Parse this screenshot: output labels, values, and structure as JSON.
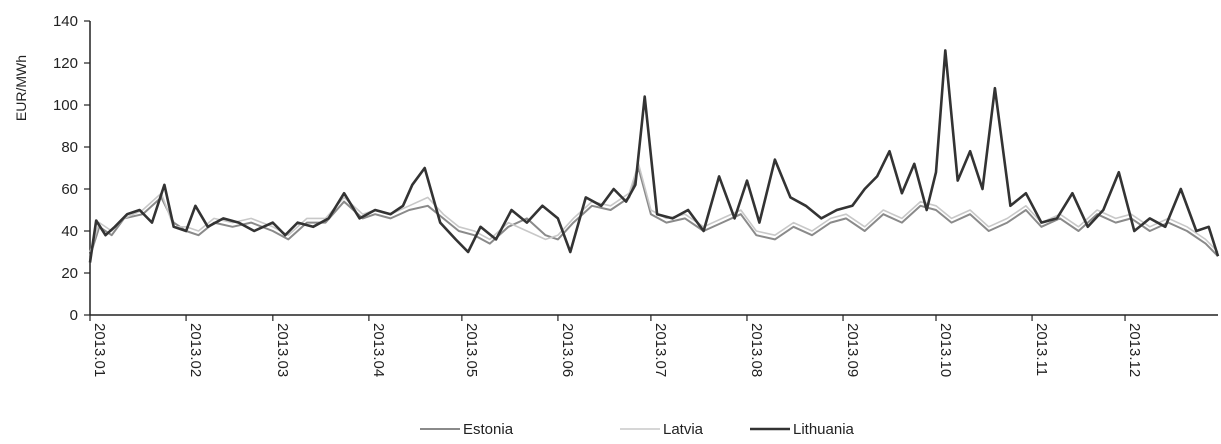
{
  "chart_data": {
    "type": "line",
    "ylabel": "EUR/MWh",
    "ylim": [
      0,
      140
    ],
    "yticks": [
      0,
      20,
      40,
      60,
      80,
      100,
      120,
      140
    ],
    "xlim": [
      "2013-01-01",
      "2013-12-31"
    ],
    "xticks": [
      {
        "date": "2013-01-01",
        "label": "2013.01"
      },
      {
        "date": "2013-02-01",
        "label": "2013.02"
      },
      {
        "date": "2013-03-01",
        "label": "2013.03"
      },
      {
        "date": "2013-04-01",
        "label": "2013.04"
      },
      {
        "date": "2013-05-01",
        "label": "2013.05"
      },
      {
        "date": "2013-06-01",
        "label": "2013.06"
      },
      {
        "date": "2013-07-01",
        "label": "2013.07"
      },
      {
        "date": "2013-08-01",
        "label": "2013.08"
      },
      {
        "date": "2013-09-01",
        "label": "2013.09"
      },
      {
        "date": "2013-10-01",
        "label": "2013.10"
      },
      {
        "date": "2013-11-01",
        "label": "2013.11"
      },
      {
        "date": "2013-12-01",
        "label": "2013.12"
      }
    ],
    "grid": false,
    "legend_position": "bottom",
    "colors": {
      "Estonia": "#8a8a8a",
      "Latvia": "#c8c8c8",
      "Lithuania": "#333333"
    },
    "series": [
      {
        "name": "Estonia",
        "x": [
          "2013-01-01",
          "2013-01-04",
          "2013-01-08",
          "2013-01-12",
          "2013-01-18",
          "2013-01-24",
          "2013-01-28",
          "2013-02-01",
          "2013-02-05",
          "2013-02-10",
          "2013-02-16",
          "2013-02-22",
          "2013-03-01",
          "2013-03-06",
          "2013-03-12",
          "2013-03-18",
          "2013-03-24",
          "2013-03-30",
          "2013-04-03",
          "2013-04-08",
          "2013-04-14",
          "2013-04-20",
          "2013-04-25",
          "2013-04-30",
          "2013-05-05",
          "2013-05-10",
          "2013-05-16",
          "2013-05-22",
          "2013-05-28",
          "2013-06-01",
          "2013-06-06",
          "2013-06-12",
          "2013-06-18",
          "2013-06-24",
          "2013-06-27",
          "2013-07-01",
          "2013-07-06",
          "2013-07-12",
          "2013-07-18",
          "2013-07-24",
          "2013-07-30",
          "2013-08-04",
          "2013-08-10",
          "2013-08-16",
          "2013-08-22",
          "2013-08-28",
          "2013-09-02",
          "2013-09-08",
          "2013-09-14",
          "2013-09-20",
          "2013-09-26",
          "2013-10-01",
          "2013-10-06",
          "2013-10-12",
          "2013-10-18",
          "2013-10-24",
          "2013-10-30",
          "2013-11-04",
          "2013-11-10",
          "2013-11-16",
          "2013-11-22",
          "2013-11-28",
          "2013-12-03",
          "2013-12-09",
          "2013-12-15",
          "2013-12-21",
          "2013-12-27",
          "2013-12-31"
        ],
        "y": [
          28,
          42,
          38,
          46,
          48,
          56,
          44,
          40,
          38,
          44,
          42,
          44,
          40,
          36,
          44,
          44,
          54,
          46,
          48,
          46,
          50,
          52,
          46,
          40,
          38,
          34,
          42,
          46,
          38,
          36,
          44,
          52,
          50,
          56,
          70,
          48,
          44,
          46,
          40,
          44,
          48,
          38,
          36,
          42,
          38,
          44,
          46,
          40,
          48,
          44,
          52,
          50,
          44,
          48,
          40,
          44,
          50,
          42,
          46,
          40,
          48,
          44,
          46,
          40,
          44,
          40,
          34,
          28
        ]
      },
      {
        "name": "Latvia",
        "x": [
          "2013-01-01",
          "2013-01-04",
          "2013-01-08",
          "2013-01-12",
          "2013-01-18",
          "2013-01-24",
          "2013-01-28",
          "2013-02-01",
          "2013-02-05",
          "2013-02-10",
          "2013-02-16",
          "2013-02-22",
          "2013-03-01",
          "2013-03-06",
          "2013-03-12",
          "2013-03-18",
          "2013-03-24",
          "2013-03-30",
          "2013-04-03",
          "2013-04-08",
          "2013-04-14",
          "2013-04-20",
          "2013-04-25",
          "2013-04-30",
          "2013-05-05",
          "2013-05-10",
          "2013-05-16",
          "2013-05-22",
          "2013-05-28",
          "2013-06-01",
          "2013-06-06",
          "2013-06-12",
          "2013-06-18",
          "2013-06-24",
          "2013-06-27",
          "2013-07-01",
          "2013-07-06",
          "2013-07-12",
          "2013-07-18",
          "2013-07-24",
          "2013-07-30",
          "2013-08-04",
          "2013-08-10",
          "2013-08-16",
          "2013-08-22",
          "2013-08-28",
          "2013-09-02",
          "2013-09-08",
          "2013-09-14",
          "2013-09-20",
          "2013-09-26",
          "2013-10-01",
          "2013-10-06",
          "2013-10-12",
          "2013-10-18",
          "2013-10-24",
          "2013-10-30",
          "2013-11-04",
          "2013-11-10",
          "2013-11-16",
          "2013-11-22",
          "2013-11-28",
          "2013-12-03",
          "2013-12-09",
          "2013-12-15",
          "2013-12-21",
          "2013-12-27",
          "2013-12-31"
        ],
        "y": [
          30,
          44,
          40,
          46,
          50,
          58,
          42,
          42,
          40,
          46,
          44,
          46,
          42,
          38,
          46,
          46,
          56,
          48,
          50,
          48,
          52,
          56,
          48,
          42,
          40,
          36,
          44,
          40,
          36,
          38,
          46,
          54,
          52,
          58,
          72,
          50,
          46,
          48,
          42,
          46,
          50,
          40,
          38,
          44,
          40,
          46,
          48,
          42,
          50,
          46,
          54,
          52,
          46,
          50,
          42,
          46,
          52,
          44,
          48,
          42,
          50,
          46,
          48,
          42,
          46,
          42,
          36,
          30
        ]
      },
      {
        "name": "Lithuania",
        "x": [
          "2013-01-01",
          "2013-01-03",
          "2013-01-06",
          "2013-01-09",
          "2013-01-13",
          "2013-01-17",
          "2013-01-21",
          "2013-01-25",
          "2013-01-28",
          "2013-02-01",
          "2013-02-04",
          "2013-02-08",
          "2013-02-13",
          "2013-02-18",
          "2013-02-23",
          "2013-03-01",
          "2013-03-05",
          "2013-03-09",
          "2013-03-14",
          "2013-03-19",
          "2013-03-24",
          "2013-03-29",
          "2013-04-03",
          "2013-04-08",
          "2013-04-12",
          "2013-04-15",
          "2013-04-19",
          "2013-04-24",
          "2013-04-29",
          "2013-05-03",
          "2013-05-07",
          "2013-05-12",
          "2013-05-17",
          "2013-05-22",
          "2013-05-27",
          "2013-06-01",
          "2013-06-05",
          "2013-06-10",
          "2013-06-15",
          "2013-06-19",
          "2013-06-23",
          "2013-06-26",
          "2013-06-29",
          "2013-07-03",
          "2013-07-08",
          "2013-07-13",
          "2013-07-18",
          "2013-07-23",
          "2013-07-28",
          "2013-08-01",
          "2013-08-05",
          "2013-08-10",
          "2013-08-15",
          "2013-08-20",
          "2013-08-25",
          "2013-08-30",
          "2013-09-04",
          "2013-09-08",
          "2013-09-12",
          "2013-09-16",
          "2013-09-20",
          "2013-09-24",
          "2013-09-28",
          "2013-10-01",
          "2013-10-04",
          "2013-10-08",
          "2013-10-12",
          "2013-10-16",
          "2013-10-20",
          "2013-10-25",
          "2013-10-30",
          "2013-11-04",
          "2013-11-09",
          "2013-11-14",
          "2013-11-19",
          "2013-11-24",
          "2013-11-29",
          "2013-12-04",
          "2013-12-09",
          "2013-12-14",
          "2013-12-19",
          "2013-12-24",
          "2013-12-28",
          "2013-12-31"
        ],
        "y": [
          25,
          45,
          38,
          42,
          48,
          50,
          44,
          62,
          42,
          40,
          52,
          42,
          46,
          44,
          40,
          44,
          38,
          44,
          42,
          46,
          58,
          46,
          50,
          48,
          52,
          62,
          70,
          44,
          36,
          30,
          42,
          36,
          50,
          44,
          52,
          46,
          30,
          56,
          52,
          60,
          54,
          62,
          104,
          48,
          46,
          50,
          40,
          66,
          46,
          64,
          44,
          74,
          56,
          52,
          46,
          50,
          52,
          60,
          66,
          78,
          58,
          72,
          50,
          68,
          126,
          64,
          78,
          60,
          108,
          52,
          58,
          44,
          46,
          58,
          42,
          50,
          68,
          40,
          46,
          42,
          60,
          40,
          42,
          28
        ]
      }
    ]
  }
}
